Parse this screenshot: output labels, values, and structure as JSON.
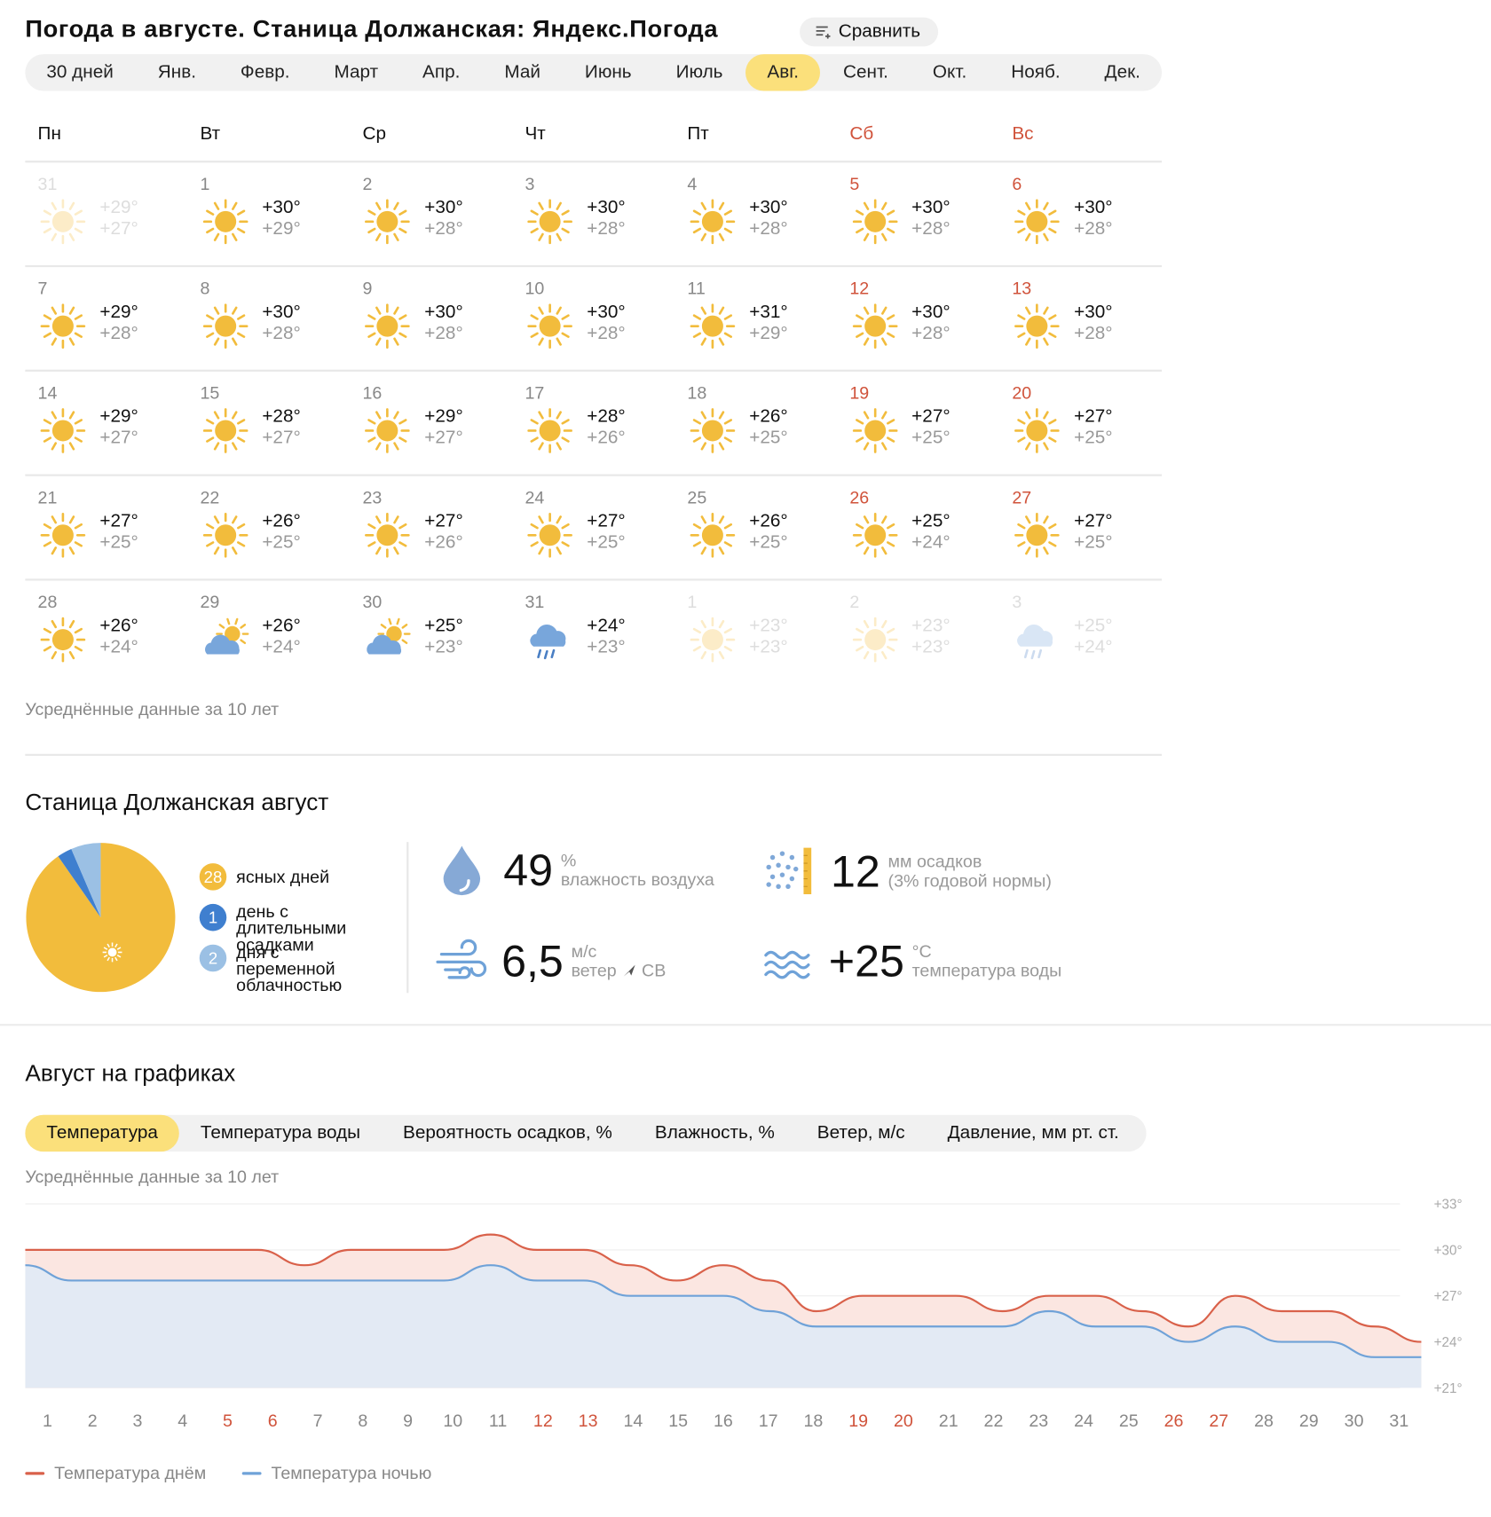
{
  "header": {
    "title": "Погода в августе. Станица Должанская: Яндекс.Погода",
    "compare_label": "Сравнить"
  },
  "months": [
    {
      "label": "30 дней",
      "active": false
    },
    {
      "label": "Янв.",
      "active": false
    },
    {
      "label": "Февр.",
      "active": false
    },
    {
      "label": "Март",
      "active": false
    },
    {
      "label": "Апр.",
      "active": false
    },
    {
      "label": "Май",
      "active": false
    },
    {
      "label": "Июнь",
      "active": false
    },
    {
      "label": "Июль",
      "active": false
    },
    {
      "label": "Авг.",
      "active": true
    },
    {
      "label": "Сент.",
      "active": false
    },
    {
      "label": "Окт.",
      "active": false
    },
    {
      "label": "Нояб.",
      "active": false
    },
    {
      "label": "Дек.",
      "active": false
    }
  ],
  "calendar": {
    "weekdays": [
      {
        "label": "Пн",
        "weekend": false
      },
      {
        "label": "Вт",
        "weekend": false
      },
      {
        "label": "Ср",
        "weekend": false
      },
      {
        "label": "Чт",
        "weekend": false
      },
      {
        "label": "Пт",
        "weekend": false
      },
      {
        "label": "Сб",
        "weekend": true
      },
      {
        "label": "Вс",
        "weekend": true
      }
    ],
    "weeks": [
      [
        {
          "day": "31",
          "icon": "sun-icon",
          "max": "+29°",
          "min": "+27°",
          "dim": true
        },
        {
          "day": "1",
          "icon": "sun-icon",
          "max": "+30°",
          "min": "+29°"
        },
        {
          "day": "2",
          "icon": "sun-icon",
          "max": "+30°",
          "min": "+28°"
        },
        {
          "day": "3",
          "icon": "sun-icon",
          "max": "+30°",
          "min": "+28°"
        },
        {
          "day": "4",
          "icon": "sun-icon",
          "max": "+30°",
          "min": "+28°"
        },
        {
          "day": "5",
          "icon": "sun-icon",
          "max": "+30°",
          "min": "+28°",
          "weekend": true
        },
        {
          "day": "6",
          "icon": "sun-icon",
          "max": "+30°",
          "min": "+28°",
          "weekend": true
        }
      ],
      [
        {
          "day": "7",
          "icon": "sun-icon",
          "max": "+29°",
          "min": "+28°"
        },
        {
          "day": "8",
          "icon": "sun-icon",
          "max": "+30°",
          "min": "+28°"
        },
        {
          "day": "9",
          "icon": "sun-icon",
          "max": "+30°",
          "min": "+28°"
        },
        {
          "day": "10",
          "icon": "sun-icon",
          "max": "+30°",
          "min": "+28°"
        },
        {
          "day": "11",
          "icon": "sun-icon",
          "max": "+31°",
          "min": "+29°"
        },
        {
          "day": "12",
          "icon": "sun-icon",
          "max": "+30°",
          "min": "+28°",
          "weekend": true
        },
        {
          "day": "13",
          "icon": "sun-icon",
          "max": "+30°",
          "min": "+28°",
          "weekend": true
        }
      ],
      [
        {
          "day": "14",
          "icon": "sun-icon",
          "max": "+29°",
          "min": "+27°"
        },
        {
          "day": "15",
          "icon": "sun-icon",
          "max": "+28°",
          "min": "+27°"
        },
        {
          "day": "16",
          "icon": "sun-icon",
          "max": "+29°",
          "min": "+27°"
        },
        {
          "day": "17",
          "icon": "sun-icon",
          "max": "+28°",
          "min": "+26°"
        },
        {
          "day": "18",
          "icon": "sun-icon",
          "max": "+26°",
          "min": "+25°"
        },
        {
          "day": "19",
          "icon": "sun-icon",
          "max": "+27°",
          "min": "+25°",
          "weekend": true
        },
        {
          "day": "20",
          "icon": "sun-icon",
          "max": "+27°",
          "min": "+25°",
          "weekend": true
        }
      ],
      [
        {
          "day": "21",
          "icon": "sun-icon",
          "max": "+27°",
          "min": "+25°"
        },
        {
          "day": "22",
          "icon": "sun-icon",
          "max": "+26°",
          "min": "+25°"
        },
        {
          "day": "23",
          "icon": "sun-icon",
          "max": "+27°",
          "min": "+26°"
        },
        {
          "day": "24",
          "icon": "sun-icon",
          "max": "+27°",
          "min": "+25°"
        },
        {
          "day": "25",
          "icon": "sun-icon",
          "max": "+26°",
          "min": "+25°"
        },
        {
          "day": "26",
          "icon": "sun-icon",
          "max": "+25°",
          "min": "+24°",
          "weekend": true
        },
        {
          "day": "27",
          "icon": "sun-icon",
          "max": "+27°",
          "min": "+25°",
          "weekend": true
        }
      ],
      [
        {
          "day": "28",
          "icon": "sun-icon",
          "max": "+26°",
          "min": "+24°"
        },
        {
          "day": "29",
          "icon": "partly-cloudy-icon",
          "max": "+26°",
          "min": "+24°"
        },
        {
          "day": "30",
          "icon": "partly-cloudy-icon",
          "max": "+25°",
          "min": "+23°"
        },
        {
          "day": "31",
          "icon": "rain-cloud-icon",
          "max": "+24°",
          "min": "+23°"
        },
        {
          "day": "1",
          "icon": "sun-icon",
          "max": "+23°",
          "min": "+23°",
          "dim": true
        },
        {
          "day": "2",
          "icon": "sun-icon",
          "max": "+23°",
          "min": "+23°",
          "dim": true,
          "weekend": true
        },
        {
          "day": "3",
          "icon": "rain-cloud-icon",
          "max": "+25°",
          "min": "+24°",
          "dim": true,
          "weekend": true
        }
      ]
    ],
    "note": "Усреднённые данные за 10 лет"
  },
  "summary": {
    "title": "Станица Должанская август",
    "pie": {
      "clear": 28,
      "precip": 1,
      "cloudy": 2
    },
    "legend": [
      {
        "count": "28",
        "text": "ясных дней",
        "color": "#f2bc3c"
      },
      {
        "count": "1",
        "text": "день с длительными осадками",
        "color": "#3f7fcf"
      },
      {
        "count": "2",
        "text": "дня с переменной облачностью",
        "color": "#9bc0e4"
      }
    ],
    "humidity": {
      "value": "49",
      "unit": "%",
      "label": "влажность воздуха"
    },
    "precip": {
      "value": "12",
      "unit": "мм осадков",
      "label": "(3% годовой нормы)"
    },
    "wind": {
      "value": "6,5",
      "unit": "м/с",
      "label": "ветер",
      "direction": "СВ"
    },
    "water": {
      "value": "+25",
      "unit": "°C",
      "label": "температура воды"
    }
  },
  "graphs": {
    "title": "Август на графиках",
    "tabs": [
      {
        "label": "Температура",
        "active": true
      },
      {
        "label": "Температура воды",
        "active": false
      },
      {
        "label": "Вероятность осадков, %",
        "active": false
      },
      {
        "label": "Влажность, %",
        "active": false
      },
      {
        "label": "Ветер, м/с",
        "active": false
      },
      {
        "label": "Давление, мм рт. ст.",
        "active": false
      }
    ],
    "note": "Усреднённые данные за 10 лет",
    "legend_day": "Температура днём",
    "legend_night": "Температура ночью"
  },
  "chart_data": {
    "type": "area",
    "x": [
      "1",
      "2",
      "3",
      "4",
      "5",
      "6",
      "7",
      "8",
      "9",
      "10",
      "11",
      "12",
      "13",
      "14",
      "15",
      "16",
      "17",
      "18",
      "19",
      "20",
      "21",
      "22",
      "23",
      "24",
      "25",
      "26",
      "27",
      "28",
      "29",
      "30",
      "31"
    ],
    "weekend_days": [
      "5",
      "6",
      "12",
      "13",
      "19",
      "20",
      "26",
      "27"
    ],
    "ylim": [
      21,
      33
    ],
    "yticks": [
      "+33°",
      "+30°",
      "+27°",
      "+24°",
      "+21°"
    ],
    "ytick_values": [
      33,
      30,
      27,
      24,
      21
    ],
    "series": [
      {
        "name": "Температура днём",
        "color": "#d9614a",
        "values": [
          30,
          30,
          30,
          30,
          30,
          30,
          29,
          30,
          30,
          30,
          31,
          30,
          30,
          29,
          28,
          29,
          28,
          26,
          27,
          27,
          27,
          26,
          27,
          27,
          26,
          25,
          27,
          26,
          26,
          25,
          24
        ]
      },
      {
        "name": "Температура ночью",
        "color": "#6fa2d8",
        "values": [
          29,
          28,
          28,
          28,
          28,
          28,
          28,
          28,
          28,
          28,
          29,
          28,
          28,
          27,
          27,
          27,
          26,
          25,
          25,
          25,
          25,
          25,
          26,
          25,
          25,
          24,
          25,
          24,
          24,
          23,
          23
        ]
      }
    ]
  }
}
